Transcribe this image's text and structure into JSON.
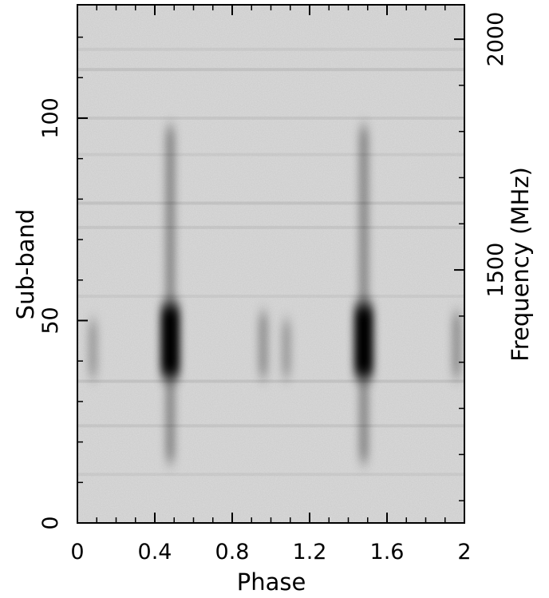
{
  "chart_data": {
    "type": "heatmap",
    "colormap": "grayscale-inverted",
    "xlabel": "Phase",
    "ylabel": "Sub-band",
    "y2label": "Frequency (MHz)",
    "xlim": [
      0,
      2
    ],
    "ylim": [
      0,
      128
    ],
    "x_ticks": [
      "0",
      "0.4",
      "0.8",
      "1.2",
      "1.6",
      "2"
    ],
    "x_tick_values": [
      0,
      0.4,
      0.8,
      1.2,
      1.6,
      2.0
    ],
    "y_ticks": [
      "0",
      "50",
      "100"
    ],
    "y_tick_values": [
      0,
      50,
      100
    ],
    "y2_ticks": [
      "1500",
      "2000"
    ],
    "y2_tick_values_subband": [
      62.5,
      119.5
    ],
    "grid": false,
    "features": [
      {
        "phase": 0.48,
        "subband_from": 36,
        "subband_to": 54,
        "intensity": 1.0
      },
      {
        "phase": 0.48,
        "subband_from": 15,
        "subband_to": 98,
        "intensity": 0.35
      },
      {
        "phase": 1.48,
        "subband_from": 36,
        "subband_to": 54,
        "intensity": 1.0
      },
      {
        "phase": 1.48,
        "subband_from": 15,
        "subband_to": 98,
        "intensity": 0.35
      },
      {
        "phase": 0.96,
        "subband_from": 36,
        "subband_to": 52,
        "intensity": 0.3
      },
      {
        "phase": 1.08,
        "subband_from": 36,
        "subband_to": 50,
        "intensity": 0.25
      },
      {
        "phase": 0.08,
        "subband_from": 36,
        "subband_to": 50,
        "intensity": 0.25
      },
      {
        "phase": 1.96,
        "subband_from": 36,
        "subband_to": 52,
        "intensity": 0.3
      }
    ]
  }
}
